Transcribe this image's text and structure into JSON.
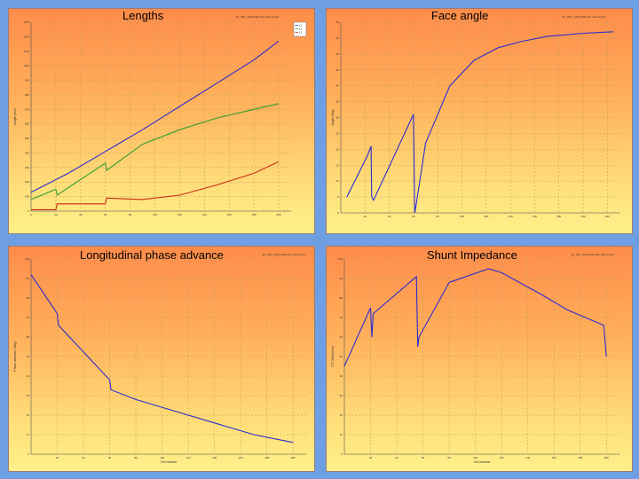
{
  "page": {
    "background": "#6f9fe3"
  },
  "panels": [
    {
      "title": "Lengths",
      "note": "Ex_OPL_120x4.0Rm4m-m04.sol.pln"
    },
    {
      "title": "Face angle",
      "note": "Ex_OPL_120x4.0Rm4m-m04.sol.pln"
    },
    {
      "title": "Longitudinal phase advance",
      "note": "Ex_OPL_120x4.0Rm4m-m04.sol.pln"
    },
    {
      "title": "Shunt Impedance",
      "note": "Ex_OPL_120x4.0Rm4m-m04.sol.pln"
    }
  ],
  "chart_data": [
    {
      "type": "line",
      "title": "Lengths",
      "xlabel": "",
      "ylabel": "Length (mm)",
      "xlim": [
        0,
        210
      ],
      "ylim": [
        0,
        1300
      ],
      "xticks": [
        "0",
        "20",
        "40",
        "60",
        "80",
        "100",
        "120",
        "140",
        "160",
        "180",
        "200"
      ],
      "yticks": [
        "0",
        "100",
        "200",
        "300",
        "400",
        "500",
        "600",
        "700",
        "800",
        "900",
        "1000",
        "1100",
        "1200",
        "1300"
      ],
      "legend": {
        "position": "top-right",
        "entries": [
          "L1",
          "L2",
          "L3"
        ]
      },
      "grid": true,
      "series": [
        {
          "name": "L1",
          "color": "#2b2bd0",
          "x": [
            0,
            30,
            60,
            90,
            120,
            150,
            180,
            200
          ],
          "y": [
            130,
            260,
            410,
            560,
            720,
            880,
            1040,
            1170
          ]
        },
        {
          "name": "L2",
          "color": "#2f9e2f",
          "x": [
            0,
            20,
            21,
            60,
            61,
            90,
            120,
            150,
            180,
            200
          ],
          "y": [
            80,
            150,
            110,
            330,
            280,
            460,
            560,
            640,
            700,
            740
          ]
        },
        {
          "name": "L3",
          "color": "#cc2a1a",
          "x": [
            0,
            20,
            21,
            60,
            61,
            90,
            120,
            150,
            180,
            200
          ],
          "y": [
            10,
            10,
            50,
            50,
            90,
            80,
            110,
            180,
            260,
            340
          ]
        }
      ]
    },
    {
      "type": "line",
      "title": "Face angle",
      "xlabel": "",
      "ylabel": "Angle (deg)",
      "xlim": [
        0,
        230
      ],
      "ylim": [
        0,
        60
      ],
      "xticks": [
        "20",
        "40",
        "60",
        "80",
        "100",
        "120",
        "140",
        "160",
        "180",
        "200",
        "220"
      ],
      "yticks": [
        "0",
        "5",
        "10",
        "15",
        "20",
        "25",
        "30",
        "35",
        "40",
        "45",
        "50",
        "55",
        "60"
      ],
      "grid": true,
      "series": [
        {
          "name": "",
          "color": "#2b2bd0",
          "x": [
            5,
            22,
            25,
            25.5,
            27,
            60,
            61,
            62,
            70,
            90,
            110,
            130,
            150,
            170,
            200,
            225
          ],
          "y": [
            5,
            18,
            21,
            5,
            4,
            31,
            0,
            2,
            22,
            40,
            48,
            52,
            54,
            55.5,
            56.5,
            57
          ]
        }
      ]
    },
    {
      "type": "line",
      "title": "Longitudinal phase advance",
      "xlabel": "Cell number",
      "ylabel": "Phase advance (deg)",
      "xlim": [
        0,
        210
      ],
      "ylim": [
        0,
        100
      ],
      "xticks": [
        "20",
        "40",
        "60",
        "80",
        "100",
        "120",
        "140",
        "160",
        "180",
        "200"
      ],
      "yticks": [
        "0",
        "10",
        "20",
        "30",
        "40",
        "50",
        "60",
        "70",
        "80",
        "90",
        "100"
      ],
      "grid": true,
      "series": [
        {
          "name": "",
          "color": "#2b2bd0",
          "x": [
            0,
            20,
            21,
            60,
            61,
            80,
            110,
            140,
            170,
            200
          ],
          "y": [
            92,
            72,
            66,
            38,
            33,
            28,
            22,
            16,
            10,
            6
          ]
        }
      ]
    },
    {
      "type": "line",
      "title": "Shunt Impedance",
      "xlabel": "Cell number",
      "ylabel": "ZTT (MOhm/m)",
      "xlim": [
        0,
        210
      ],
      "ylim": [
        0,
        100
      ],
      "xticks": [
        "20",
        "40",
        "60",
        "80",
        "100",
        "120",
        "140",
        "160",
        "180",
        "200"
      ],
      "yticks": [
        "0",
        "10",
        "20",
        "30",
        "40",
        "50",
        "60",
        "70",
        "80",
        "90",
        "100"
      ],
      "grid": true,
      "series": [
        {
          "name": "",
          "color": "#2b2bd0",
          "x": [
            0,
            20,
            21,
            22,
            55,
            56,
            57,
            80,
            110,
            120,
            150,
            170,
            198,
            200
          ],
          "y": [
            45,
            75,
            60,
            72,
            91,
            55,
            60,
            88,
            95,
            93,
            82,
            74,
            66,
            50
          ]
        }
      ]
    }
  ]
}
